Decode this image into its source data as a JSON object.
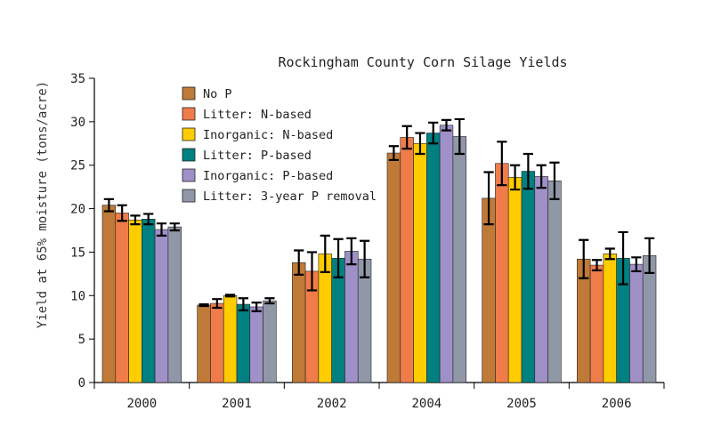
{
  "chart_data": {
    "type": "bar",
    "title": "Rockingham County Corn Silage Yields",
    "ylabel": "Yield at 65% moisture (tons/acre)",
    "xlabel": "",
    "ylim": [
      0,
      35
    ],
    "yticks": [
      0,
      5,
      10,
      15,
      20,
      25,
      30,
      35
    ],
    "categories": [
      "2000",
      "2001",
      "2002",
      "2004",
      "2005",
      "2006"
    ],
    "legend_position": "top-left",
    "series": [
      {
        "name": "No P",
        "color": "#c07a38",
        "values": [
          20.4,
          8.9,
          13.8,
          26.4,
          21.2,
          14.2
        ],
        "errors": [
          0.7,
          0.1,
          1.4,
          0.8,
          3.0,
          2.2
        ]
      },
      {
        "name": "Litter: N-based",
        "color": "#f07c4a",
        "values": [
          19.5,
          9.1,
          12.8,
          28.2,
          25.2,
          13.5
        ],
        "errors": [
          0.9,
          0.5,
          2.2,
          1.3,
          2.5,
          0.6
        ]
      },
      {
        "name": "Inorganic: N-based",
        "color": "#ffcc00",
        "values": [
          18.7,
          10.0,
          14.8,
          27.5,
          23.6,
          14.8
        ],
        "errors": [
          0.5,
          0.1,
          2.1,
          1.2,
          1.4,
          0.6
        ]
      },
      {
        "name": "Litter: P-based",
        "color": "#008080",
        "values": [
          18.8,
          9.0,
          14.3,
          28.7,
          24.3,
          14.3
        ],
        "errors": [
          0.6,
          0.7,
          2.2,
          1.2,
          2.0,
          3.0
        ]
      },
      {
        "name": "Inorganic: P-based",
        "color": "#a090c8",
        "values": [
          17.6,
          8.7,
          15.1,
          29.6,
          23.7,
          13.6
        ],
        "errors": [
          0.7,
          0.5,
          1.5,
          0.6,
          1.3,
          0.8
        ]
      },
      {
        "name": "Litter: 3-year P removal",
        "color": "#9098a8",
        "values": [
          17.9,
          9.4,
          14.2,
          28.3,
          23.2,
          14.6
        ],
        "errors": [
          0.4,
          0.3,
          2.1,
          2.0,
          2.1,
          2.0
        ]
      }
    ]
  }
}
